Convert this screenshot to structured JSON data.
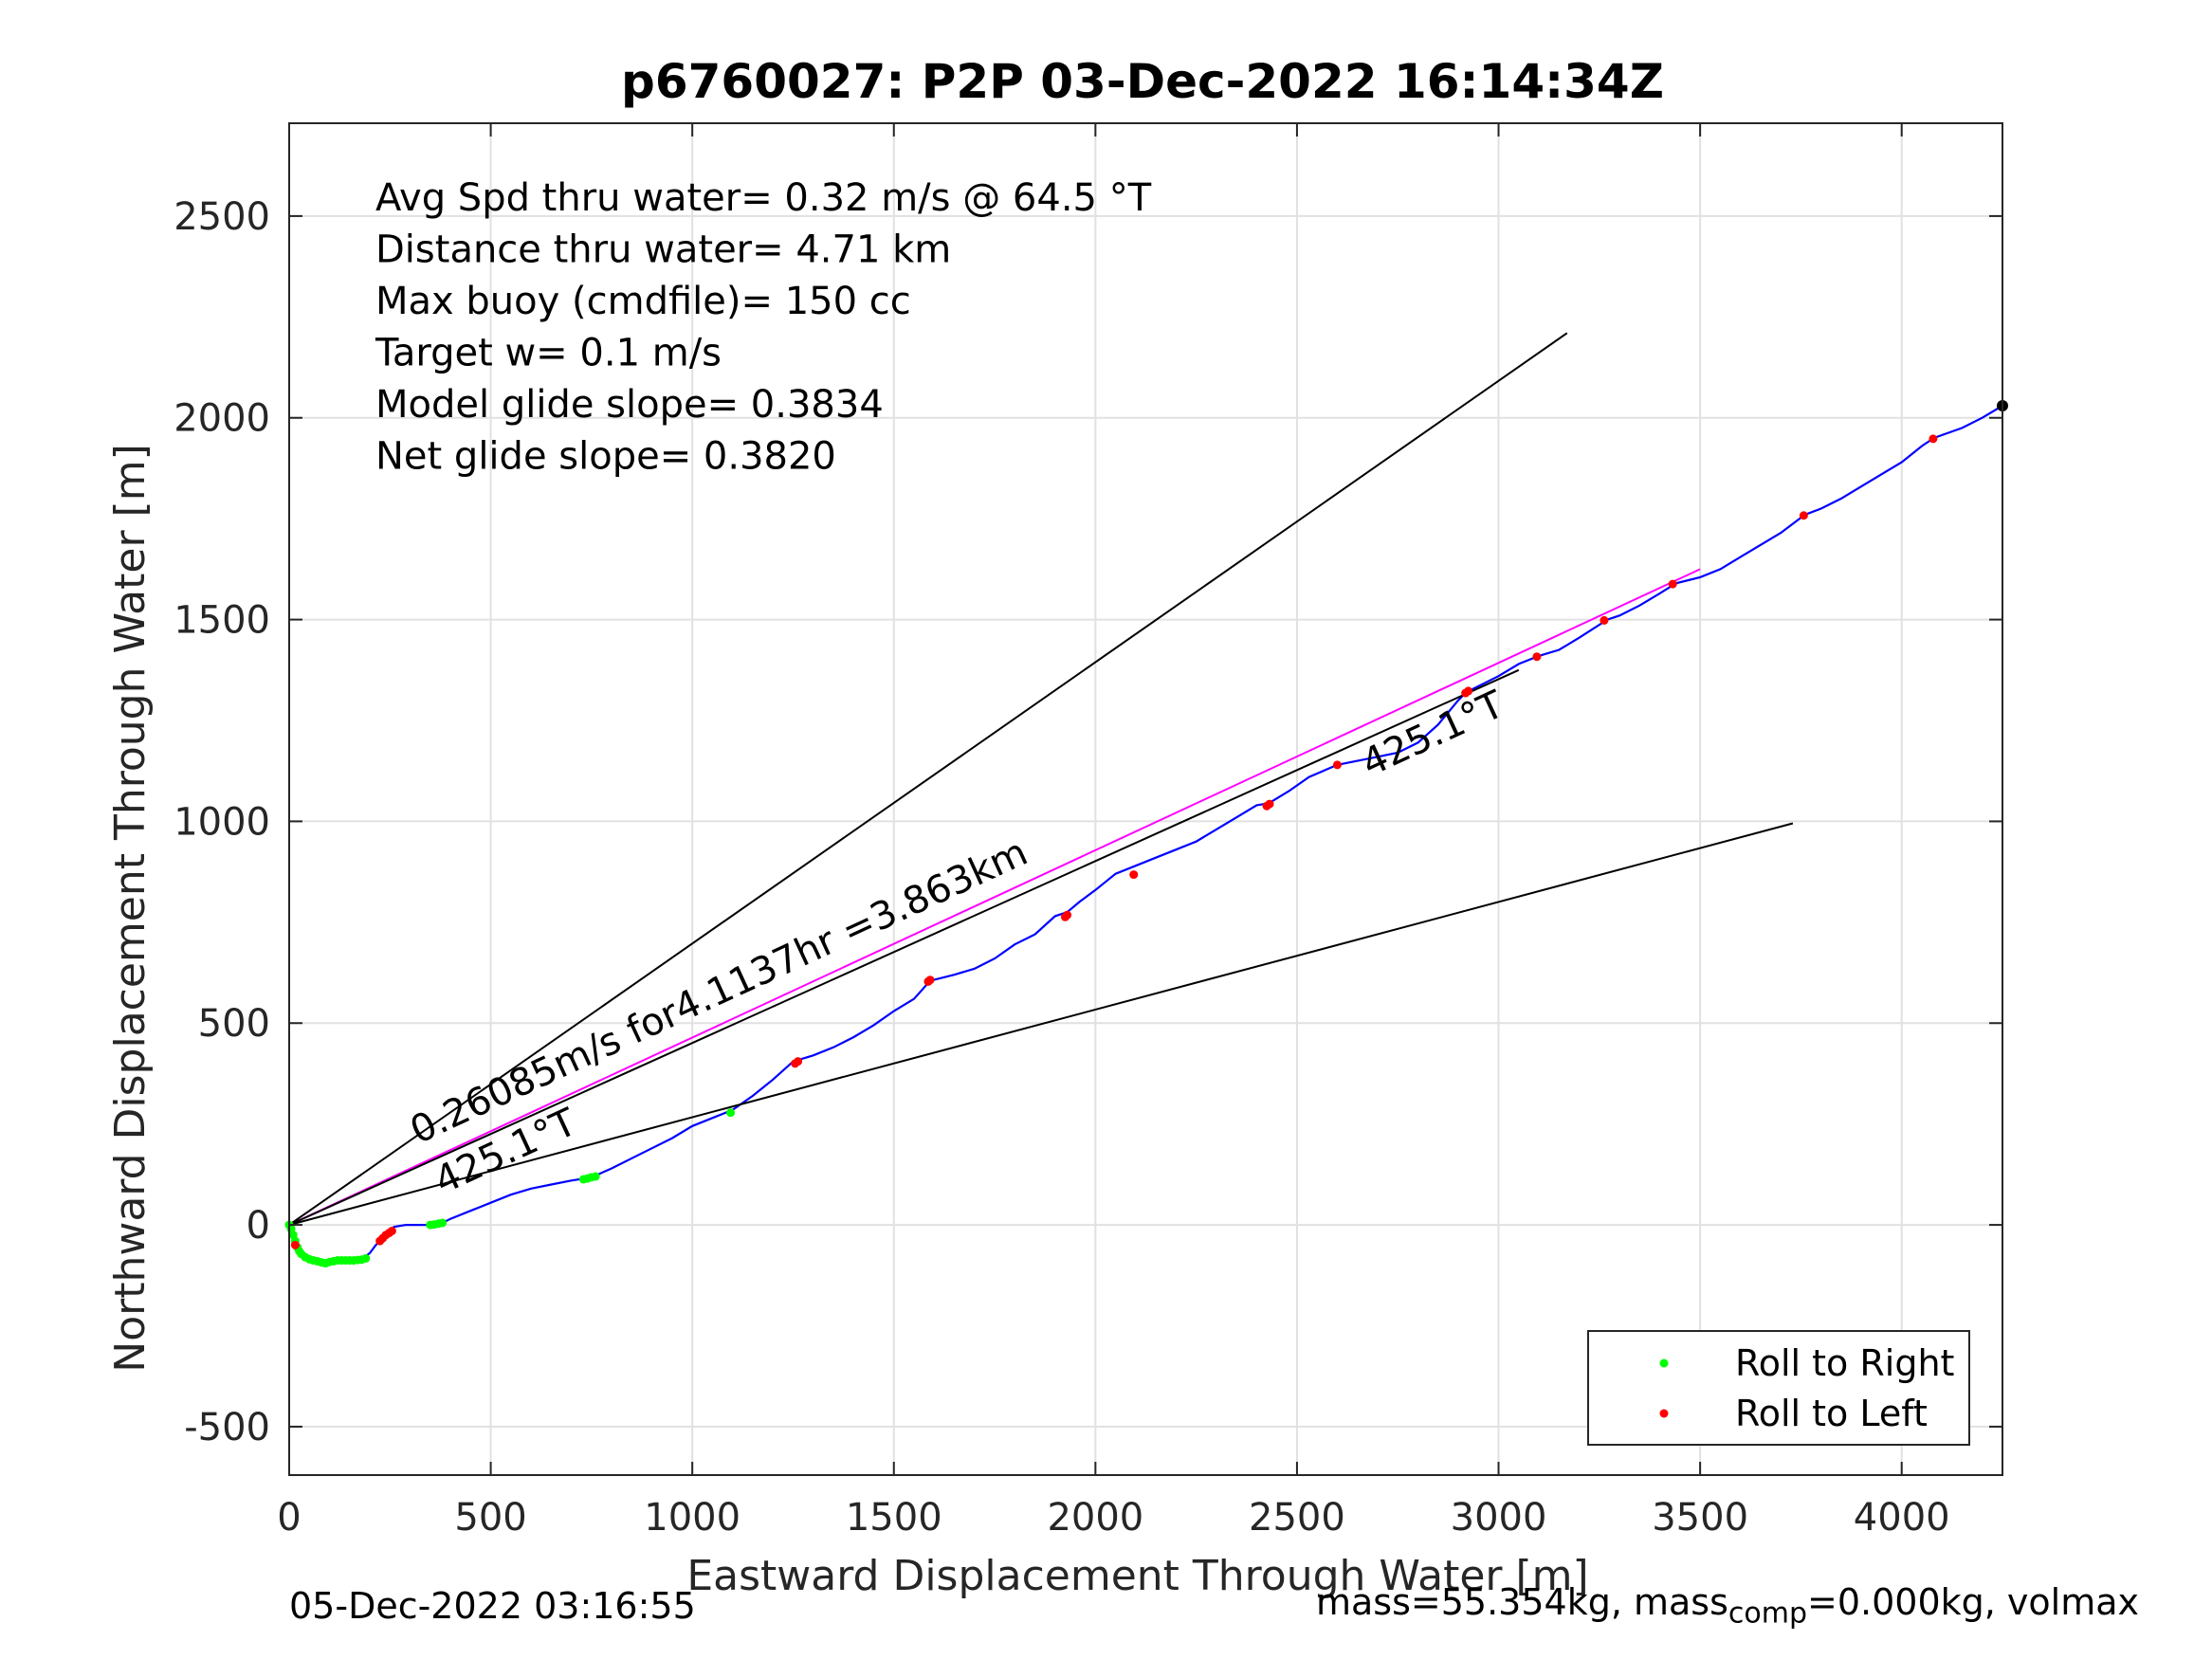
{
  "chart_data": {
    "type": "line",
    "title": "p6760027: P2P 03-Dec-2022 16:14:34Z",
    "xlabel": "Eastward Displacement Through Water [m]",
    "ylabel": "Northward Displacement Through Water [m]",
    "xlim": [
      0,
      4250
    ],
    "ylim": [
      -620,
      2730
    ],
    "xticks": [
      0,
      500,
      1000,
      1500,
      2000,
      2500,
      3000,
      3500,
      4000
    ],
    "yticks": [
      -500,
      0,
      500,
      1000,
      1500,
      2000,
      2500
    ],
    "grid": true,
    "legend_position": "bottom-right",
    "legend": [
      {
        "label": "Roll to Right",
        "color": "#00ff00"
      },
      {
        "label": "Roll to Left",
        "color": "#ff0000"
      }
    ],
    "info_text": [
      "Avg Spd thru water=  0.32 m/s @  64.5 °T",
      "Distance thru water=  4.71 km",
      "Max buoy (cmdfile)= 150 cc",
      "Target w= 0.1 m/s",
      "Model glide slope= 0.3834",
      "Net glide slope= 0.3820"
    ],
    "annotations": [
      {
        "text": "0.26085m/s for4.1137hr =3.863km",
        "x": 320,
        "y": 200,
        "angle_deg": 24.8
      },
      {
        "text": "425.1°T",
        "x": 380,
        "y": 75,
        "angle_deg": 24.8
      },
      {
        "text": "425.1°T",
        "x": 2680,
        "y": 1110,
        "angle_deg": 24.8
      }
    ],
    "series": [
      {
        "style": "track",
        "color": "#0000ff",
        "x": [
          0,
          10,
          30,
          60,
          80,
          100,
          120,
          150,
          180,
          200,
          215,
          230,
          245,
          260,
          290,
          320,
          350,
          380,
          400,
          450,
          500,
          550,
          600,
          650,
          700,
          750,
          800,
          850,
          900,
          950,
          1000,
          1050,
          1100,
          1150,
          1200,
          1250,
          1300,
          1350,
          1400,
          1450,
          1500,
          1550,
          1590,
          1650,
          1700,
          1750,
          1800,
          1850,
          1900,
          1930,
          1960,
          2000,
          2050,
          2100,
          2150,
          2200,
          2250,
          2300,
          2350,
          2400,
          2430,
          2480,
          2530,
          2600,
          2650,
          2700,
          2750,
          2800,
          2850,
          2900,
          2920,
          2950,
          3000,
          3050,
          3100,
          3150,
          3200,
          3270,
          3300,
          3350,
          3400,
          3440,
          3500,
          3550,
          3600,
          3650,
          3700,
          3760,
          3800,
          3850,
          3900,
          3950,
          4000,
          4050,
          4080,
          4150,
          4200,
          4250
        ],
        "y": [
          0,
          -30,
          -75,
          -90,
          -95,
          -90,
          -88,
          -88,
          -85,
          -70,
          -50,
          -35,
          -20,
          -5,
          0,
          0,
          0,
          5,
          15,
          35,
          55,
          75,
          90,
          100,
          110,
          118,
          140,
          165,
          190,
          215,
          245,
          265,
          285,
          320,
          360,
          405,
          420,
          440,
          465,
          495,
          530,
          560,
          605,
          620,
          635,
          660,
          695,
          720,
          765,
          775,
          800,
          830,
          870,
          890,
          910,
          930,
          950,
          980,
          1010,
          1040,
          1045,
          1075,
          1110,
          1140,
          1150,
          1160,
          1170,
          1195,
          1240,
          1300,
          1320,
          1335,
          1360,
          1390,
          1410,
          1425,
          1455,
          1500,
          1510,
          1535,
          1565,
          1590,
          1605,
          1625,
          1655,
          1685,
          1715,
          1760,
          1775,
          1800,
          1830,
          1860,
          1890,
          1930,
          1950,
          1975,
          2000,
          2030
        ]
      },
      {
        "style": "line",
        "color": "#ff00ff",
        "x": [
          0,
          3500
        ],
        "y": [
          0,
          1625
        ]
      },
      {
        "style": "line",
        "color": "#000000",
        "x": [
          0,
          3170
        ],
        "y": [
          0,
          2210
        ]
      },
      {
        "style": "line",
        "color": "#000000",
        "x": [
          0,
          3730
        ],
        "y": [
          0,
          995
        ]
      },
      {
        "style": "line",
        "color": "#000000",
        "x": [
          0,
          3050
        ],
        "y": [
          0,
          1375
        ]
      },
      {
        "name": "Roll to Right",
        "style": "points",
        "color": "#00ff00",
        "x": [
          0,
          5,
          10,
          15,
          20,
          25,
          30,
          40,
          50,
          60,
          70,
          80,
          90,
          100,
          110,
          120,
          130,
          140,
          150,
          160,
          170,
          180,
          190,
          350,
          360,
          370,
          380,
          730,
          740,
          750,
          760,
          1095
        ],
        "y": [
          0,
          -10,
          -25,
          -40,
          -55,
          -65,
          -72,
          -80,
          -85,
          -88,
          -90,
          -93,
          -95,
          -92,
          -90,
          -88,
          -88,
          -88,
          -88,
          -88,
          -87,
          -86,
          -83,
          0,
          1,
          3,
          5,
          113,
          115,
          118,
          120,
          278
        ]
      },
      {
        "name": "Roll to Left",
        "style": "points",
        "color": "#ff0000",
        "x": [
          15,
          225,
          232,
          240,
          248,
          255,
          1255,
          1262,
          1585,
          1590,
          1925,
          1930,
          2095,
          2425,
          2432,
          2600,
          2918,
          2925,
          3095,
          3262,
          3432,
          3757,
          4078
        ],
        "y": [
          -50,
          -40,
          -33,
          -25,
          -20,
          -15,
          400,
          405,
          603,
          607,
          763,
          768,
          868,
          1038,
          1043,
          1140,
          1318,
          1323,
          1408,
          1498,
          1588,
          1758,
          1948
        ]
      },
      {
        "style": "points",
        "color": "#000000",
        "x": [
          4250
        ],
        "y": [
          2030
        ]
      }
    ]
  },
  "footer": {
    "left": "05-Dec-2022 03:16:55",
    "right_main": "mass=55.354kg, mass",
    "right_sub": "comp",
    "right_tail": "=0.000kg, volmax"
  }
}
